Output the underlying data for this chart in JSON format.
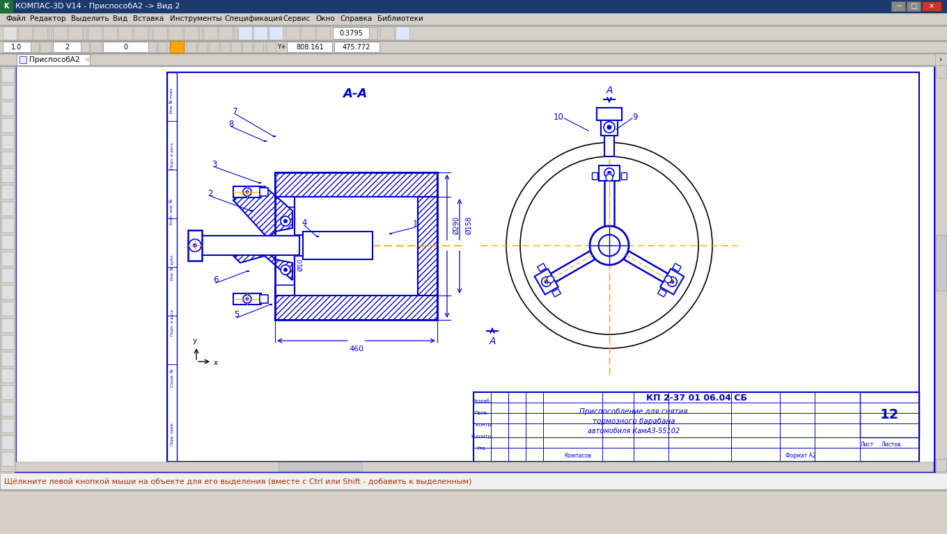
{
  "window_title": "КОМПАС-3D V14 - ПриспособА2 -> Вид 2",
  "tab_title": "ПриспособА2",
  "status_bar_text": "Щёлкните левой кнопкой мыши на объекте для его выделения (вместе с Ctrl или Shift - добавить к выделенным)",
  "bg_color": "#d4d0c8",
  "title_bar_color": "#1c3a6e",
  "drawing_bg": "#ffffff",
  "blue": "#0000cc",
  "orange": "#ffa500",
  "black": "#000000",
  "white": "#ffffff",
  "gray": "#a0a0a0",
  "section_label": "А-А",
  "dim_460": "460",
  "titleblock_text1": "КП 2-37 01 06.04 СБ",
  "titleblock_text2": "Приспособление для снятия",
  "titleblock_text3": "тормозного барабана",
  "titleblock_text4": "автомобиля КамАЗ-55102",
  "titleblock_num": "12",
  "titleblock_sheet": "Лист",
  "titleblock_sheets": "Листов",
  "titleblock_format": "Формат А2",
  "menu_items": [
    "Файл",
    "Редактор",
    "Выделить",
    "Вид",
    "Вставка",
    "Инструменты",
    "Спецификация",
    "Сервис",
    "Окно",
    "Справка",
    "Библиотеки"
  ],
  "zoom_val": "0.3795",
  "coord_x": "808.161",
  "coord_y": "475.772"
}
